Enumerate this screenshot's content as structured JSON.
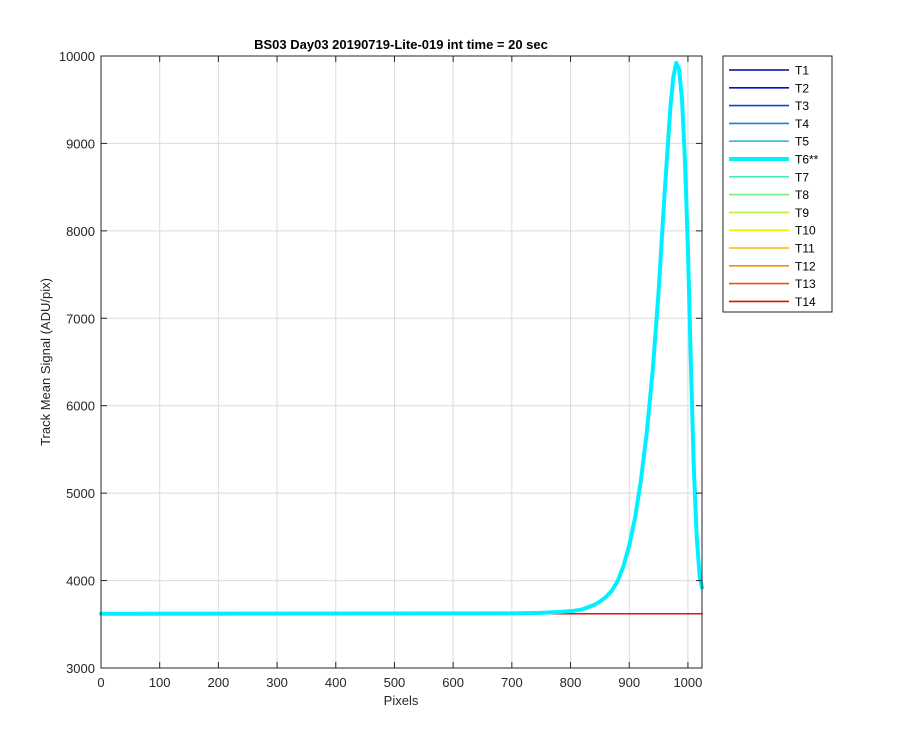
{
  "chart_data": {
    "type": "line",
    "title": "BS03 Day03 20190719-Lite-019 int time = 20 sec",
    "xlabel": "Pixels",
    "ylabel": "Track Mean Signal (ADU/pix)",
    "xlim": [
      0,
      1024
    ],
    "ylim": [
      3000,
      10000
    ],
    "xticks": [
      0,
      100,
      200,
      300,
      400,
      500,
      600,
      700,
      800,
      900,
      1000
    ],
    "yticks": [
      3000,
      4000,
      5000,
      6000,
      7000,
      8000,
      9000,
      10000
    ],
    "grid": true,
    "legend_position": "outside-top-right",
    "series": [
      {
        "name": "T1",
        "color": "#0000aa",
        "baseline": 3620
      },
      {
        "name": "T2",
        "color": "#0011cc",
        "baseline": 3620
      },
      {
        "name": "T3",
        "color": "#1144dd",
        "baseline": 3620
      },
      {
        "name": "T4",
        "color": "#1e7fe0",
        "baseline": 3620
      },
      {
        "name": "T5",
        "color": "#1fbff2",
        "baseline": 3620
      },
      {
        "name": "T6**",
        "color": "#00f0ff",
        "highlight": true,
        "x": [
          0,
          700,
          750,
          780,
          800,
          820,
          840,
          850,
          860,
          870,
          880,
          890,
          900,
          910,
          920,
          930,
          940,
          950,
          960,
          970,
          975,
          980,
          985,
          990,
          995,
          1000,
          1005,
          1010,
          1015,
          1020,
          1024
        ],
        "y": [
          3620,
          3625,
          3630,
          3640,
          3650,
          3670,
          3720,
          3760,
          3810,
          3880,
          3990,
          4160,
          4400,
          4720,
          5150,
          5700,
          6400,
          7300,
          8400,
          9400,
          9750,
          9920,
          9850,
          9500,
          8800,
          7800,
          6500,
          5300,
          4500,
          4050,
          3920
        ]
      },
      {
        "name": "T7",
        "color": "#44eebb",
        "baseline": 3620
      },
      {
        "name": "T8",
        "color": "#77ee88",
        "baseline": 3620
      },
      {
        "name": "T9",
        "color": "#bbee44",
        "baseline": 3620
      },
      {
        "name": "T10",
        "color": "#f5f000",
        "baseline": 3620
      },
      {
        "name": "T11",
        "color": "#f0c000",
        "baseline": 3620
      },
      {
        "name": "T12",
        "color": "#f59000",
        "baseline": 3620
      },
      {
        "name": "T13",
        "color": "#f05010",
        "baseline": 3620
      },
      {
        "name": "T14",
        "color": "#dd1100",
        "baseline": 3620
      }
    ]
  }
}
